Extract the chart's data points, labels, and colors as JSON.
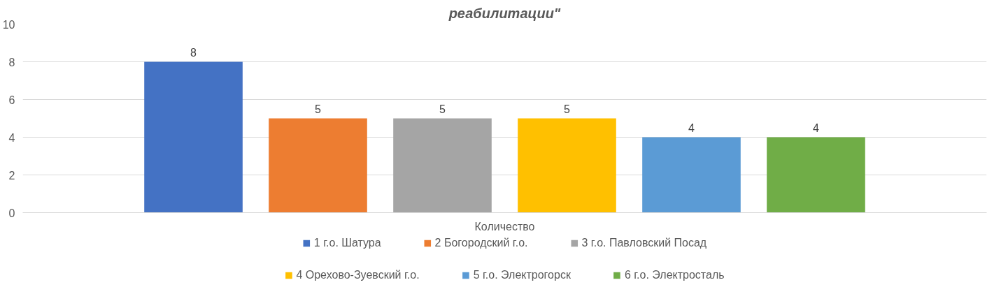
{
  "chart_data": {
    "type": "bar",
    "title": "реабилитации\"",
    "categories": [
      "Количество"
    ],
    "series": [
      {
        "name": "1 г.о. Шатура",
        "color": "#4472c4",
        "values": [
          8
        ]
      },
      {
        "name": "2 Богородский г.о.",
        "color": "#ed7d31",
        "values": [
          5
        ]
      },
      {
        "name": "3 г.о. Павловский Посад",
        "color": "#a5a5a5",
        "values": [
          5
        ]
      },
      {
        "name": "4 Орехово-Зуевский г.о.",
        "color": "#ffc000",
        "values": [
          5
        ]
      },
      {
        "name": "5 г.о. Электрогорск",
        "color": "#5b9bd5",
        "values": [
          4
        ]
      },
      {
        "name": "6 г.о. Электросталь",
        "color": "#70ad47",
        "values": [
          4
        ]
      }
    ],
    "ylim": [
      0,
      10
    ],
    "yticks": [
      0,
      2,
      4,
      6,
      8,
      10
    ],
    "grid": "y",
    "legend": "bottom",
    "data_labels": true
  }
}
